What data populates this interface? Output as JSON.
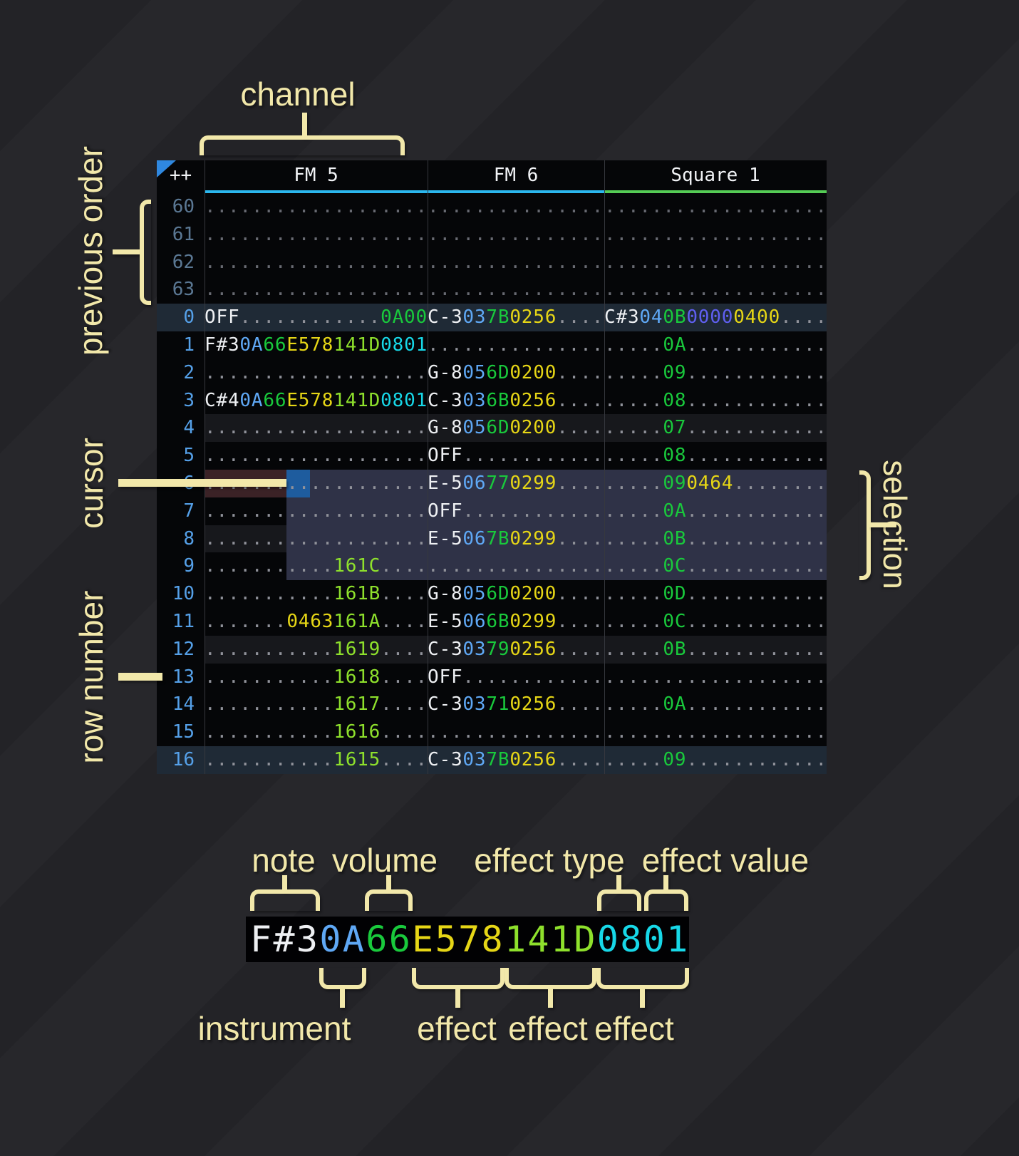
{
  "annotations": {
    "channel": "channel",
    "previous_order": "previous order",
    "cursor": "cursor",
    "row_number": "row number",
    "selection": "selection",
    "note": "note",
    "volume": "volume",
    "effect_type": "effect type",
    "effect_value": "effect value",
    "instrument": "instrument",
    "effect1": "effect",
    "effect2": "effect",
    "effect3": "effect"
  },
  "pattern": {
    "order_button": "++",
    "channels": [
      {
        "name": "FM 5",
        "accent": "#2bb7ee"
      },
      {
        "name": "FM 6",
        "accent": "#2bb7ee"
      },
      {
        "name": "Square 1",
        "accent": "#55cc55"
      }
    ],
    "rows": [
      {
        "n": "60",
        "p": true,
        "c": [
          [
            [
              "...................",
              "dot"
            ]
          ],
          [
            [
              "...............",
              "dot"
            ]
          ],
          [
            [
              "...................",
              "dot"
            ]
          ]
        ]
      },
      {
        "n": "61",
        "p": true,
        "c": [
          [
            [
              "...................",
              "dot"
            ]
          ],
          [
            [
              "...............",
              "dot"
            ]
          ],
          [
            [
              "...................",
              "dot"
            ]
          ]
        ]
      },
      {
        "n": "62",
        "p": true,
        "c": [
          [
            [
              "...................",
              "dot"
            ]
          ],
          [
            [
              "...............",
              "dot"
            ]
          ],
          [
            [
              "...................",
              "dot"
            ]
          ]
        ]
      },
      {
        "n": "63",
        "p": true,
        "c": [
          [
            [
              "...................",
              "dot"
            ]
          ],
          [
            [
              "...............",
              "dot"
            ]
          ],
          [
            [
              "...................",
              "dot"
            ]
          ]
        ]
      },
      {
        "n": "0",
        "h": "hl16",
        "c": [
          [
            [
              "OFF",
              "note"
            ],
            [
              "............",
              "dot"
            ],
            [
              "0A00",
              "vol"
            ]
          ],
          [
            [
              "C-3",
              "note"
            ],
            [
              "03",
              "ins"
            ],
            [
              "7B",
              "vol"
            ],
            [
              "0256",
              "fxY"
            ],
            [
              "....",
              "dot"
            ]
          ],
          [
            [
              "C#3",
              "note"
            ],
            [
              "04",
              "ins"
            ],
            [
              "0B",
              "vol"
            ],
            [
              "0000",
              "fxP"
            ],
            [
              "0400",
              "fxY"
            ],
            [
              "....",
              "dot"
            ]
          ]
        ]
      },
      {
        "n": "1",
        "c": [
          [
            [
              "F#3",
              "note"
            ],
            [
              "0A",
              "ins"
            ],
            [
              "66",
              "vol"
            ],
            [
              "E578",
              "fxY"
            ],
            [
              "141D",
              "fxL"
            ],
            [
              "0801",
              "fxC"
            ]
          ],
          [
            [
              "...............",
              "dot"
            ]
          ],
          [
            [
              ".....",
              "dot"
            ],
            [
              "0A",
              "vol"
            ],
            [
              "............",
              "dot"
            ]
          ]
        ]
      },
      {
        "n": "2",
        "c": [
          [
            [
              "...................",
              "dot"
            ]
          ],
          [
            [
              "G-8",
              "note"
            ],
            [
              "05",
              "ins"
            ],
            [
              "6D",
              "vol"
            ],
            [
              "0200",
              "fxY"
            ],
            [
              "....",
              "dot"
            ]
          ],
          [
            [
              ".....",
              "dot"
            ],
            [
              "09",
              "vol"
            ],
            [
              "............",
              "dot"
            ]
          ]
        ]
      },
      {
        "n": "3",
        "c": [
          [
            [
              "C#4",
              "note"
            ],
            [
              "0A",
              "ins"
            ],
            [
              "66",
              "vol"
            ],
            [
              "E578",
              "fxY"
            ],
            [
              "141D",
              "fxL"
            ],
            [
              "0801",
              "fxC"
            ]
          ],
          [
            [
              "C-3",
              "note"
            ],
            [
              "03",
              "ins"
            ],
            [
              "6B",
              "vol"
            ],
            [
              "0256",
              "fxY"
            ],
            [
              "....",
              "dot"
            ]
          ],
          [
            [
              ".....",
              "dot"
            ],
            [
              "08",
              "vol"
            ],
            [
              "............",
              "dot"
            ]
          ]
        ]
      },
      {
        "n": "4",
        "h": "hl4",
        "c": [
          [
            [
              "...................",
              "dot"
            ]
          ],
          [
            [
              "G-8",
              "note"
            ],
            [
              "05",
              "ins"
            ],
            [
              "6D",
              "vol"
            ],
            [
              "0200",
              "fxY"
            ],
            [
              "....",
              "dot"
            ]
          ],
          [
            [
              ".....",
              "dot"
            ],
            [
              "07",
              "vol"
            ],
            [
              "............",
              "dot"
            ]
          ]
        ]
      },
      {
        "n": "5",
        "c": [
          [
            [
              "...................",
              "dot"
            ]
          ],
          [
            [
              "OFF",
              "note"
            ],
            [
              "............",
              "dot"
            ]
          ],
          [
            [
              ".....",
              "dot"
            ],
            [
              "08",
              "vol"
            ],
            [
              "............",
              "dot"
            ]
          ]
        ]
      },
      {
        "n": "6",
        "c": [
          [
            [
              "...................",
              "dot"
            ]
          ],
          [
            [
              "E-5",
              "note"
            ],
            [
              "06",
              "ins"
            ],
            [
              "77",
              "vol"
            ],
            [
              "0299",
              "fxY"
            ],
            [
              "....",
              "dot"
            ]
          ],
          [
            [
              ".....",
              "dot"
            ],
            [
              "09",
              "vol"
            ],
            [
              "0464",
              "fxY"
            ],
            [
              "........",
              "dot"
            ]
          ]
        ]
      },
      {
        "n": "7",
        "c": [
          [
            [
              "...................",
              "dot"
            ]
          ],
          [
            [
              "OFF",
              "note"
            ],
            [
              "............",
              "dot"
            ]
          ],
          [
            [
              ".....",
              "dot"
            ],
            [
              "0A",
              "vol"
            ],
            [
              "............",
              "dot"
            ]
          ]
        ]
      },
      {
        "n": "8",
        "h": "hl4",
        "c": [
          [
            [
              "...................",
              "dot"
            ]
          ],
          [
            [
              "E-5",
              "note"
            ],
            [
              "06",
              "ins"
            ],
            [
              "7B",
              "vol"
            ],
            [
              "0299",
              "fxY"
            ],
            [
              "....",
              "dot"
            ]
          ],
          [
            [
              ".....",
              "dot"
            ],
            [
              "0B",
              "vol"
            ],
            [
              "............",
              "dot"
            ]
          ]
        ]
      },
      {
        "n": "9",
        "c": [
          [
            [
              "...........",
              "dot"
            ],
            [
              "161C",
              "fxL"
            ],
            [
              "....",
              "dot"
            ]
          ],
          [
            [
              "...............",
              "dot"
            ]
          ],
          [
            [
              ".....",
              "dot"
            ],
            [
              "0C",
              "vol"
            ],
            [
              "............",
              "dot"
            ]
          ]
        ]
      },
      {
        "n": "10",
        "c": [
          [
            [
              "...........",
              "dot"
            ],
            [
              "161B",
              "fxL"
            ],
            [
              "....",
              "dot"
            ]
          ],
          [
            [
              "G-8",
              "note"
            ],
            [
              "05",
              "ins"
            ],
            [
              "6D",
              "vol"
            ],
            [
              "0200",
              "fxY"
            ],
            [
              "....",
              "dot"
            ]
          ],
          [
            [
              ".....",
              "dot"
            ],
            [
              "0D",
              "vol"
            ],
            [
              "............",
              "dot"
            ]
          ]
        ]
      },
      {
        "n": "11",
        "c": [
          [
            [
              ".......",
              "dot"
            ],
            [
              "0463",
              "fxY"
            ],
            [
              "161A",
              "fxL"
            ],
            [
              "....",
              "dot"
            ]
          ],
          [
            [
              "E-5",
              "note"
            ],
            [
              "06",
              "ins"
            ],
            [
              "6B",
              "vol"
            ],
            [
              "0299",
              "fxY"
            ],
            [
              "....",
              "dot"
            ]
          ],
          [
            [
              ".....",
              "dot"
            ],
            [
              "0C",
              "vol"
            ],
            [
              "............",
              "dot"
            ]
          ]
        ]
      },
      {
        "n": "12",
        "h": "hl4",
        "c": [
          [
            [
              "...........",
              "dot"
            ],
            [
              "1619",
              "fxL"
            ],
            [
              "....",
              "dot"
            ]
          ],
          [
            [
              "C-3",
              "note"
            ],
            [
              "03",
              "ins"
            ],
            [
              "79",
              "vol"
            ],
            [
              "0256",
              "fxY"
            ],
            [
              "....",
              "dot"
            ]
          ],
          [
            [
              ".....",
              "dot"
            ],
            [
              "0B",
              "vol"
            ],
            [
              "............",
              "dot"
            ]
          ]
        ]
      },
      {
        "n": "13",
        "c": [
          [
            [
              "...........",
              "dot"
            ],
            [
              "1618",
              "fxL"
            ],
            [
              "....",
              "dot"
            ]
          ],
          [
            [
              "OFF",
              "note"
            ],
            [
              "............",
              "dot"
            ]
          ],
          [
            [
              "...................",
              "dot"
            ]
          ]
        ]
      },
      {
        "n": "14",
        "c": [
          [
            [
              "...........",
              "dot"
            ],
            [
              "1617",
              "fxL"
            ],
            [
              "....",
              "dot"
            ]
          ],
          [
            [
              "C-3",
              "note"
            ],
            [
              "03",
              "ins"
            ],
            [
              "71",
              "vol"
            ],
            [
              "0256",
              "fxY"
            ],
            [
              "....",
              "dot"
            ]
          ],
          [
            [
              ".....",
              "dot"
            ],
            [
              "0A",
              "vol"
            ],
            [
              "............",
              "dot"
            ]
          ]
        ]
      },
      {
        "n": "15",
        "c": [
          [
            [
              "...........",
              "dot"
            ],
            [
              "1616",
              "fxL"
            ],
            [
              "....",
              "dot"
            ]
          ],
          [
            [
              "...............",
              "dot"
            ]
          ],
          [
            [
              "...................",
              "dot"
            ]
          ]
        ]
      },
      {
        "n": "16",
        "h": "hl16",
        "c": [
          [
            [
              "...........",
              "dot"
            ],
            [
              "1615",
              "fxL"
            ],
            [
              "....",
              "dot"
            ]
          ],
          [
            [
              "C-3",
              "note"
            ],
            [
              "03",
              "ins"
            ],
            [
              "7B",
              "vol"
            ],
            [
              "0256",
              "fxY"
            ],
            [
              "....",
              "dot"
            ]
          ],
          [
            [
              ".....",
              "dot"
            ],
            [
              "09",
              "vol"
            ],
            [
              "............",
              "dot"
            ]
          ]
        ]
      }
    ]
  },
  "breakdown": {
    "segments": [
      {
        "t": "F#3",
        "c": "note"
      },
      {
        "t": "0A",
        "c": "ins"
      },
      {
        "t": "66",
        "c": "vol"
      },
      {
        "t": "E578",
        "c": "fxY"
      },
      {
        "t": "141D",
        "c": "fxL"
      },
      {
        "t": "0801",
        "c": "fxC"
      }
    ]
  },
  "colors": {
    "annotation": "#f2e8aa",
    "note": "#eef0f3",
    "instrument": "#5fa8f5",
    "volume": "#19c93c",
    "effect_yellow": "#e6d616",
    "effect_lime": "#8ee02c",
    "effect_cyan": "#17d8e8",
    "effect_purple": "#5f5ff0",
    "fm_channel_accent": "#2bb7ee",
    "square_channel_accent": "#55cc55",
    "cursor": "#1e5c9e",
    "cursor_row_bg": "#3b2226",
    "selection_bg": "#2f3247",
    "row_highlight_major": "#1f2a36",
    "row_highlight_minor": "#17181c",
    "header_triangle": "#2f88e0"
  }
}
